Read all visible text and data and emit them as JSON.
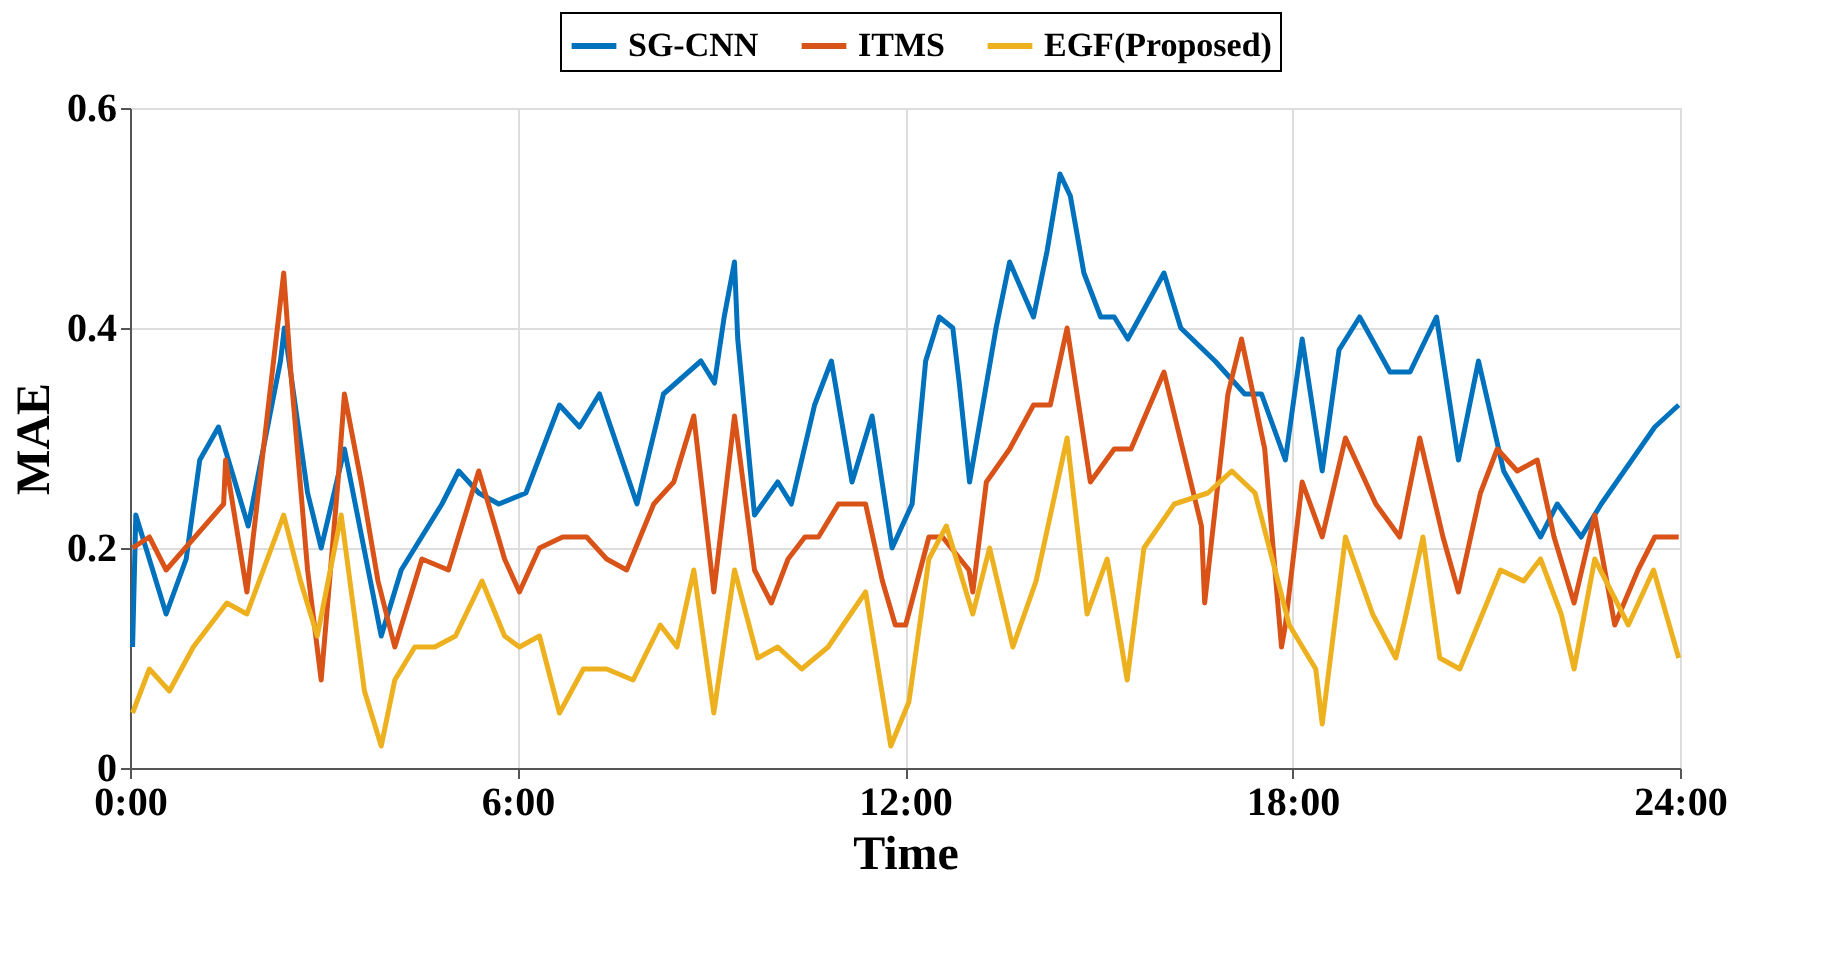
{
  "chart_data": {
    "type": "line",
    "xlabel": "Time",
    "ylabel": "MAE",
    "xlim": [
      0,
      24
    ],
    "xticks": [
      {
        "value": 0,
        "label": "0:00"
      },
      {
        "value": 6,
        "label": "6:00"
      },
      {
        "value": 12,
        "label": "12:00"
      },
      {
        "value": 18,
        "label": "18:00"
      },
      {
        "value": 24,
        "label": "24:00"
      }
    ],
    "ylim": [
      0,
      0.6
    ],
    "yticks": [
      0,
      0.2,
      0.4,
      0.6
    ],
    "grid": true,
    "legend": "top",
    "line_style": "solid",
    "marker": "none",
    "series": [
      {
        "name": "SG-CNN",
        "color": "#0072bd",
        "x": [
          0.04,
          0.09,
          0.56,
          0.87,
          1.08,
          1.37,
          1.83,
          2.33,
          2.39,
          2.75,
          2.96,
          3.32,
          3.89,
          4.2,
          4.83,
          5.09,
          5.4,
          5.71,
          6.13,
          6.65,
          6.96,
          7.27,
          7.85,
          8.26,
          8.84,
          9.05,
          9.2,
          9.36,
          9.41,
          9.67,
          10.03,
          10.24,
          10.6,
          10.86,
          11.18,
          11.49,
          11.8,
          12.11,
          12.32,
          12.53,
          12.74,
          12.84,
          13.0,
          13.41,
          13.62,
          13.99,
          14.2,
          14.4,
          14.56,
          14.77,
          15.03,
          15.24,
          15.45,
          16.01,
          16.27,
          16.8,
          17.26,
          17.52,
          17.89,
          18.15,
          18.46,
          18.72,
          19.04,
          19.51,
          19.82,
          20.23,
          20.57,
          20.88,
          21.27,
          21.84,
          22.1,
          22.47,
          22.78,
          23.61,
          23.98
        ],
        "values": [
          0.11,
          0.23,
          0.14,
          0.19,
          0.28,
          0.31,
          0.22,
          0.37,
          0.4,
          0.25,
          0.2,
          0.29,
          0.12,
          0.18,
          0.24,
          0.27,
          0.25,
          0.24,
          0.25,
          0.33,
          0.31,
          0.34,
          0.24,
          0.34,
          0.37,
          0.35,
          0.41,
          0.46,
          0.39,
          0.23,
          0.26,
          0.24,
          0.33,
          0.37,
          0.26,
          0.32,
          0.2,
          0.24,
          0.37,
          0.41,
          0.4,
          0.35,
          0.26,
          0.4,
          0.46,
          0.41,
          0.47,
          0.54,
          0.52,
          0.45,
          0.41,
          0.41,
          0.39,
          0.45,
          0.4,
          0.37,
          0.34,
          0.34,
          0.28,
          0.39,
          0.27,
          0.38,
          0.41,
          0.36,
          0.36,
          0.41,
          0.28,
          0.37,
          0.27,
          0.21,
          0.24,
          0.21,
          0.24,
          0.31,
          0.33
        ]
      },
      {
        "name": "ITMS",
        "color": "#d95319",
        "x": [
          0.04,
          0.3,
          0.56,
          1.45,
          1.48,
          1.81,
          2.38,
          2.49,
          2.75,
          2.96,
          3.22,
          3.32,
          3.58,
          3.84,
          4.1,
          4.52,
          4.93,
          5.4,
          5.8,
          6.03,
          6.34,
          6.7,
          7.07,
          7.38,
          7.69,
          8.11,
          8.42,
          8.73,
          9.04,
          9.36,
          9.67,
          9.93,
          10.19,
          10.45,
          10.66,
          10.97,
          11.39,
          11.65,
          11.85,
          12.01,
          12.37,
          12.58,
          12.99,
          13.05,
          13.26,
          13.62,
          13.99,
          14.25,
          14.51,
          14.87,
          15.24,
          15.5,
          16.01,
          16.59,
          16.64,
          17.0,
          17.21,
          17.57,
          17.83,
          17.89,
          18.15,
          18.46,
          18.82,
          19.29,
          19.66,
          19.97,
          20.33,
          20.57,
          20.91,
          21.17,
          21.48,
          21.79,
          22.05,
          22.36,
          22.68,
          22.99,
          23.35,
          23.61,
          23.98
        ],
        "values": [
          0.2,
          0.21,
          0.18,
          0.24,
          0.28,
          0.16,
          0.45,
          0.36,
          0.18,
          0.08,
          0.26,
          0.34,
          0.26,
          0.17,
          0.11,
          0.19,
          0.18,
          0.27,
          0.19,
          0.16,
          0.2,
          0.21,
          0.21,
          0.19,
          0.18,
          0.24,
          0.26,
          0.32,
          0.16,
          0.32,
          0.18,
          0.15,
          0.19,
          0.21,
          0.21,
          0.24,
          0.24,
          0.17,
          0.13,
          0.13,
          0.21,
          0.21,
          0.18,
          0.16,
          0.26,
          0.29,
          0.33,
          0.33,
          0.4,
          0.26,
          0.29,
          0.29,
          0.36,
          0.22,
          0.15,
          0.34,
          0.39,
          0.29,
          0.11,
          0.13,
          0.26,
          0.21,
          0.3,
          0.24,
          0.21,
          0.3,
          0.21,
          0.16,
          0.25,
          0.29,
          0.27,
          0.28,
          0.21,
          0.15,
          0.23,
          0.13,
          0.18,
          0.21,
          0.21
        ]
      },
      {
        "name": "EGF(Proposed)",
        "color": "#edb120",
        "x": [
          0.04,
          0.3,
          0.61,
          0.98,
          1.5,
          1.81,
          2.38,
          2.64,
          2.9,
          3.27,
          3.63,
          3.89,
          4.1,
          4.41,
          4.72,
          5.04,
          5.45,
          5.8,
          6.03,
          6.34,
          6.65,
          7.02,
          7.38,
          7.79,
          8.21,
          8.47,
          8.73,
          9.04,
          9.36,
          9.72,
          10.03,
          10.4,
          10.81,
          11.39,
          11.78,
          12.06,
          12.37,
          12.64,
          13.05,
          13.31,
          13.67,
          14.03,
          14.51,
          14.82,
          15.13,
          15.44,
          15.7,
          16.17,
          16.69,
          17.06,
          17.42,
          17.73,
          17.95,
          18.36,
          18.46,
          18.82,
          19.24,
          19.6,
          19.76,
          20.02,
          20.28,
          20.59,
          21.22,
          21.58,
          21.84,
          22.16,
          22.36,
          22.68,
          23.2,
          23.59,
          23.98
        ],
        "values": [
          0.05,
          0.09,
          0.07,
          0.11,
          0.15,
          0.14,
          0.23,
          0.17,
          0.12,
          0.23,
          0.07,
          0.02,
          0.08,
          0.11,
          0.11,
          0.12,
          0.17,
          0.12,
          0.11,
          0.12,
          0.05,
          0.09,
          0.09,
          0.08,
          0.13,
          0.11,
          0.18,
          0.05,
          0.18,
          0.1,
          0.11,
          0.09,
          0.11,
          0.16,
          0.02,
          0.06,
          0.19,
          0.22,
          0.14,
          0.2,
          0.11,
          0.17,
          0.3,
          0.14,
          0.19,
          0.08,
          0.2,
          0.24,
          0.25,
          0.27,
          0.25,
          0.18,
          0.13,
          0.09,
          0.04,
          0.21,
          0.14,
          0.1,
          0.14,
          0.21,
          0.1,
          0.09,
          0.18,
          0.17,
          0.19,
          0.14,
          0.09,
          0.19,
          0.13,
          0.18,
          0.1
        ]
      }
    ]
  }
}
